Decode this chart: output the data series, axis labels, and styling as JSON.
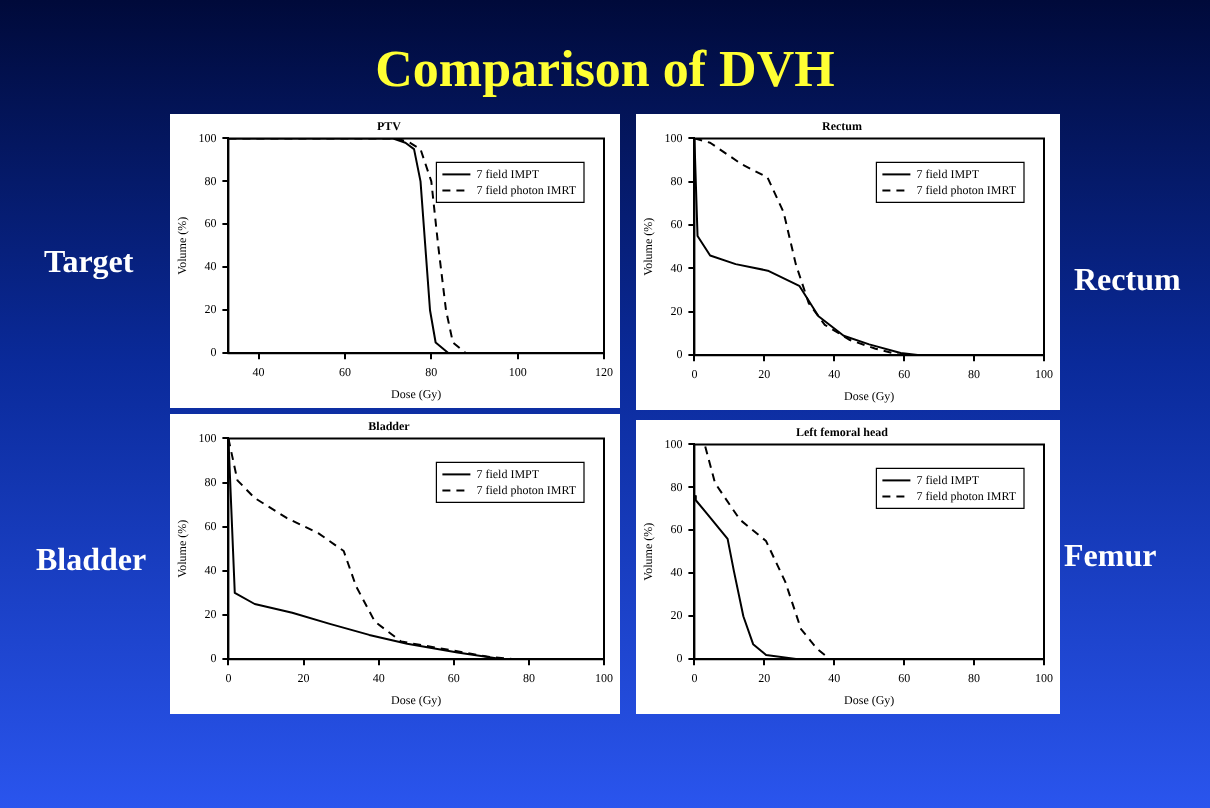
{
  "chart_data": [
    {
      "type": "other",
      "title": "Comparison of DVH"
    },
    {
      "type": "line",
      "title": "PTV",
      "xlabel": "Dose (Gy)",
      "ylabel": "Volume (%)",
      "annotations": [
        "Target"
      ],
      "legend": "top right",
      "xlim": [
        33,
        120
      ],
      "xticks": [
        40,
        60,
        80,
        100,
        120
      ],
      "ylim": [
        0,
        100
      ],
      "yticks": [
        0,
        20,
        40,
        60,
        80,
        100
      ],
      "series": [
        {
          "name": "7 field IMPT",
          "color": "#000000",
          "line_style": "solid",
          "x": [
            33,
            60,
            71,
            74,
            76,
            77.5,
            78.6,
            79.7,
            81,
            84,
            120
          ],
          "values": [
            100,
            100,
            100,
            98,
            95,
            80,
            50,
            20,
            5,
            0,
            0
          ]
        },
        {
          "name": "7 field photon IMRT",
          "color": "#000000",
          "line_style": "dashed",
          "x": [
            33,
            60,
            72,
            75,
            77.5,
            80,
            81.6,
            83.4,
            85,
            88,
            120
          ],
          "values": [
            100,
            100,
            100,
            98,
            95,
            80,
            50,
            20,
            5,
            0,
            0
          ]
        }
      ]
    },
    {
      "type": "line",
      "title": "Rectum",
      "xlabel": "Dose (Gy)",
      "ylabel": "Volume (%)",
      "annotations": [
        "Rectum"
      ],
      "legend": "top right",
      "xlim": [
        0,
        100
      ],
      "xticks": [
        0,
        20,
        40,
        60,
        80,
        100
      ],
      "ylim": [
        0,
        100
      ],
      "yticks": [
        0,
        20,
        40,
        60,
        80,
        100
      ],
      "series": [
        {
          "name": "7 field IMPT",
          "color": "#000000",
          "line_style": "solid",
          "x": [
            0,
            0.9,
            4.5,
            11.8,
            21,
            30,
            35.5,
            42.7,
            50,
            59,
            64.5
          ],
          "values": [
            100,
            55,
            46,
            42,
            39,
            32,
            18,
            9,
            5,
            1,
            0
          ]
        },
        {
          "name": "7 field photon IMRT",
          "color": "#000000",
          "line_style": "dashed",
          "x": [
            0,
            4.5,
            13.6,
            20.9,
            25.5,
            29,
            32.7,
            37.3,
            44.5,
            51.8,
            59
          ],
          "values": [
            100,
            98,
            88,
            82,
            66,
            42,
            24,
            14,
            7,
            3,
            0
          ]
        }
      ]
    },
    {
      "type": "line",
      "title": "Bladder",
      "xlabel": "Dose (Gy)",
      "ylabel": "Volume (%)",
      "annotations": [
        "Bladder"
      ],
      "legend": "top right",
      "xlim": [
        0,
        100
      ],
      "xticks": [
        0,
        20,
        40,
        60,
        80,
        100
      ],
      "ylim": [
        0,
        100
      ],
      "yticks": [
        0,
        20,
        40,
        60,
        80,
        100
      ],
      "series": [
        {
          "name": "7 field IMPT",
          "color": "#000000",
          "line_style": "solid",
          "x": [
            0,
            1.7,
            7,
            17,
            27,
            37.5,
            47.6,
            61,
            73
          ],
          "values": [
            100,
            30,
            25,
            21,
            16,
            11,
            7,
            3,
            0
          ]
        },
        {
          "name": "7 field photon IMRT",
          "color": "#000000",
          "line_style": "dashed",
          "x": [
            0,
            2.4,
            7,
            15.5,
            24,
            30.7,
            34,
            39,
            46,
            59.5,
            69.6,
            76
          ],
          "values": [
            100,
            81,
            73,
            64,
            57,
            49,
            33,
            17,
            8,
            4,
            1,
            0
          ]
        }
      ]
    },
    {
      "type": "line",
      "title": "Left femoral head",
      "xlabel": "Dose (Gy)",
      "ylabel": "Volume (%)",
      "annotations": [
        "Femur"
      ],
      "legend": "top right",
      "xlim": [
        0,
        100
      ],
      "xticks": [
        0,
        20,
        40,
        60,
        80,
        100
      ],
      "ylim": [
        0,
        100
      ],
      "yticks": [
        0,
        20,
        40,
        60,
        80,
        100
      ],
      "series": [
        {
          "name": "7 field IMPT",
          "color": "#000000",
          "line_style": "solid",
          "x": [
            0,
            0.4,
            4,
            9.5,
            11.3,
            14,
            16.8,
            20.5,
            29.6
          ],
          "values": [
            76,
            74,
            67,
            56,
            41,
            20,
            7,
            2,
            0
          ]
        },
        {
          "name": "7 field photon IMRT",
          "color": "#000000",
          "line_style": "dashed",
          "x": [
            3.1,
            5.9,
            13,
            20.5,
            26,
            30.5,
            35,
            38.8
          ],
          "values": [
            99,
            82,
            65,
            55,
            36,
            14,
            5,
            0
          ]
        }
      ]
    }
  ]
}
